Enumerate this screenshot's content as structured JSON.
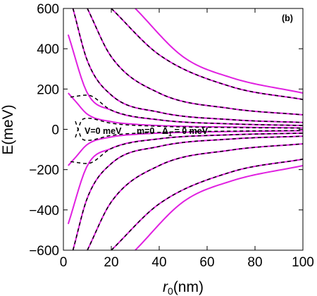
{
  "chart_data": {
    "type": "line",
    "panel_label": "(b)",
    "xlabel_symbol": "r",
    "xlabel_subscript": "0",
    "xlabel_unit": "(nm)",
    "ylabel": "E(meV)",
    "xlim": [
      0,
      100
    ],
    "ylim": [
      -600,
      600
    ],
    "x_ticks": [
      "0",
      "20",
      "40",
      "60",
      "80",
      "100"
    ],
    "y_ticks": [
      "600",
      "400",
      "200",
      "0",
      "−200",
      "−400",
      "−600"
    ],
    "annotation": {
      "line1": "V=0 meV",
      "line2": "m=0",
      "delta_symbol": "Δ",
      "delta_sub": "1",
      "delta_rest": " = 0 meV"
    },
    "series": [
      {
        "style": "solid-magenta",
        "color": "#e020e0",
        "curves": [
          {
            "n": 1,
            "x": [
              2,
              5,
              10,
              20,
              30,
              50,
              70,
              100
            ],
            "y": [
              180,
              140,
              75,
              38,
              25,
              15,
              11,
              7
            ]
          },
          {
            "n": 2,
            "x": [
              2,
              10,
              20,
              40,
              70,
              100
            ],
            "y": [
              470,
              180,
              95,
              47,
              27,
              19
            ]
          },
          {
            "n": 4,
            "x": [
              4,
              10,
              20,
              40,
              70,
              100
            ],
            "y": [
              600,
              340,
              170,
              85,
              48,
              34
            ]
          },
          {
            "n": 8,
            "x": [
              10,
              20,
              40,
              70,
              100
            ],
            "y": [
              600,
              360,
              180,
              103,
              72
            ]
          },
          {
            "n": 16,
            "x": [
              20,
              40,
              70,
              100
            ],
            "y": [
              600,
              370,
              212,
              148
            ]
          },
          {
            "n": 26,
            "x": [
              30,
              50,
              70,
              100
            ],
            "y": [
              600,
              360,
              257,
              180
            ]
          }
        ]
      },
      {
        "style": "dashed-black",
        "color": "#000000",
        "curves": [
          {
            "n": 1,
            "x": [
              5,
              8,
              10,
              20,
              40,
              70,
              100
            ],
            "y": [
              -40,
              50,
              55,
              30,
              15,
              9,
              6
            ]
          },
          {
            "n": 2,
            "x": [
              3,
              10,
              20,
              40,
              70,
              100
            ],
            "y": [
              160,
              170,
              95,
              47,
              27,
              19
            ]
          },
          {
            "n": 4,
            "x": [
              4,
              10,
              20,
              40,
              70,
              100
            ],
            "y": [
              600,
              340,
              170,
              85,
              48,
              34
            ]
          },
          {
            "n": 8,
            "x": [
              10,
              20,
              40,
              70,
              100
            ],
            "y": [
              600,
              360,
              180,
              103,
              72
            ]
          },
          {
            "n": 16,
            "x": [
              20,
              40,
              70,
              100
            ],
            "y": [
              600,
              370,
              212,
              148
            ]
          }
        ]
      }
    ],
    "grid": false,
    "legend": "none"
  }
}
